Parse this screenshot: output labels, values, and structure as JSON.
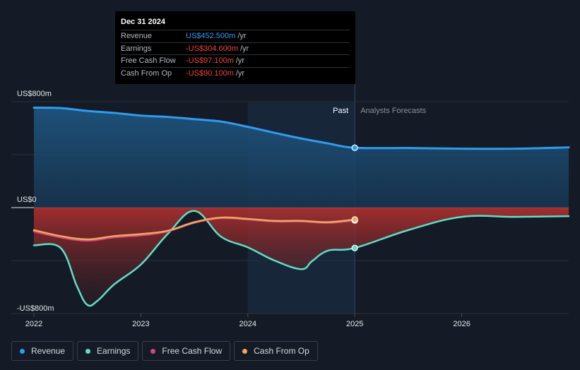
{
  "tooltip": {
    "date": "Dec 31 2024",
    "rows": [
      {
        "label": "Revenue",
        "value": "US$452.500m",
        "unit": "/yr",
        "sign": "pos"
      },
      {
        "label": "Earnings",
        "value": "-US$304.600m",
        "unit": "/yr",
        "sign": "neg"
      },
      {
        "label": "Free Cash Flow",
        "value": "-US$97.100m",
        "unit": "/yr",
        "sign": "neg"
      },
      {
        "label": "Cash From Op",
        "value": "-US$90.100m",
        "unit": "/yr",
        "sign": "neg"
      }
    ]
  },
  "labels": {
    "past": "Past",
    "forecast": "Analysts Forecasts"
  },
  "colors": {
    "revenue": "#2f9cf0",
    "earnings": "#5ee0c8",
    "fcf": "#d6457f",
    "cfo": "#f0a95a",
    "background": "#151b26"
  },
  "legend": [
    {
      "name": "Revenue",
      "color": "#2f9cf0"
    },
    {
      "name": "Earnings",
      "color": "#5ee0c8"
    },
    {
      "name": "Free Cash Flow",
      "color": "#d6457f"
    },
    {
      "name": "Cash From Op",
      "color": "#f0a95a"
    }
  ],
  "chart_data": {
    "type": "line",
    "title": "",
    "xlabel": "",
    "ylabel": "",
    "y_ticks": [
      "US$800m",
      "US$0",
      "-US$800m"
    ],
    "x_ticks": [
      "2022",
      "2023",
      "2024",
      "2025",
      "2026"
    ],
    "xlim": [
      2022,
      2027
    ],
    "ylim": [
      -800,
      800
    ],
    "past_end": 2025.0,
    "series": [
      {
        "name": "Revenue",
        "key": "revenue",
        "x": [
          2022.0,
          2022.25,
          2022.5,
          2022.75,
          2023.0,
          2023.25,
          2023.5,
          2023.75,
          2024.0,
          2024.25,
          2024.5,
          2024.75,
          2025.0,
          2025.5,
          2026.0,
          2026.5,
          2027.0
        ],
        "y": [
          755,
          752,
          730,
          715,
          695,
          685,
          668,
          650,
          610,
          565,
          522,
          485,
          452,
          450,
          445,
          445,
          455
        ]
      },
      {
        "name": "Earnings",
        "key": "earnings",
        "x": [
          2022.0,
          2022.25,
          2022.4,
          2022.5,
          2022.6,
          2022.75,
          2023.0,
          2023.25,
          2023.5,
          2023.75,
          2024.0,
          2024.25,
          2024.5,
          2024.6,
          2024.75,
          2025.0,
          2025.5,
          2026.0,
          2026.5,
          2027.0
        ],
        "y": [
          -285,
          -305,
          -590,
          -735,
          -700,
          -580,
          -430,
          -200,
          -25,
          -220,
          -300,
          -400,
          -465,
          -405,
          -325,
          -305,
          -170,
          -70,
          -70,
          -65
        ]
      },
      {
        "name": "Free Cash Flow",
        "key": "fcf",
        "x": [
          2022.0,
          2022.25,
          2022.5,
          2022.75,
          2023.0,
          2023.25,
          2023.5,
          2023.75,
          2024.0,
          2024.25,
          2024.5,
          2024.75,
          2025.0
        ],
        "y": [
          -180,
          -225,
          -250,
          -225,
          -210,
          -180,
          -115,
          -80,
          -90,
          -105,
          -105,
          -115,
          -97
        ]
      },
      {
        "name": "Cash From Op",
        "key": "cfo",
        "x": [
          2022.0,
          2022.25,
          2022.5,
          2022.75,
          2023.0,
          2023.25,
          2023.5,
          2023.75,
          2024.0,
          2024.25,
          2024.5,
          2024.75,
          2025.0
        ],
        "y": [
          -170,
          -215,
          -240,
          -215,
          -200,
          -175,
          -110,
          -75,
          -85,
          -100,
          -100,
          -110,
          -90
        ]
      }
    ]
  }
}
